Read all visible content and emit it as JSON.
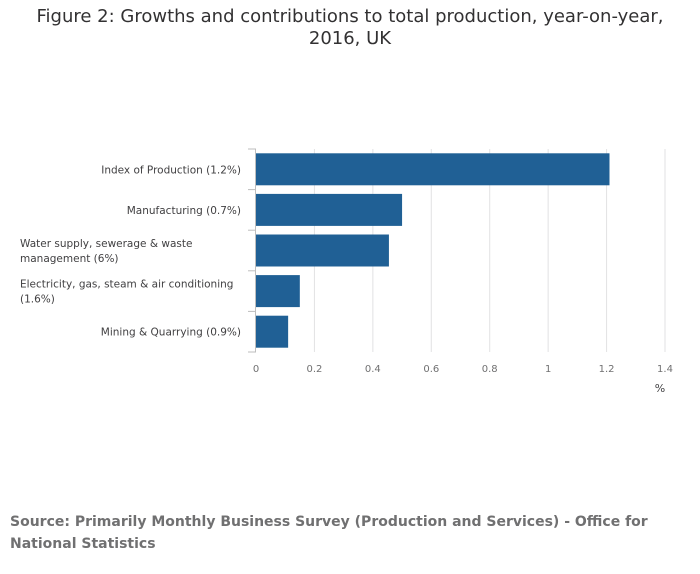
{
  "title": "Figure 2: Growths and contributions to total production, year-on-year, 2016, UK",
  "source": "Source: Primarily Monthly Business Survey (Production and Services) - Office for National Statistics",
  "chart_data": {
    "type": "bar",
    "orientation": "horizontal",
    "categories": [
      [
        "Index of Production (1.2%)"
      ],
      [
        "Manufacturing (0.7%)"
      ],
      [
        "Water supply, sewerage & waste",
        "management (6%)"
      ],
      [
        "Electricity, gas, steam & air conditioning",
        "(1.6%)"
      ],
      [
        "Mining & Quarrying (0.9%)"
      ]
    ],
    "values": [
      1.21,
      0.5,
      0.455,
      0.15,
      0.11
    ],
    "xlim": [
      0,
      1.4
    ],
    "xticks": [
      "0",
      "0.2",
      "0.4",
      "0.6",
      "0.8",
      "1",
      "1.2",
      "1.4"
    ],
    "xlabel": "%",
    "grid": true,
    "bar_color": "#206095",
    "grid_color": "#e2e2e3",
    "axis_color": "#bebebe"
  }
}
